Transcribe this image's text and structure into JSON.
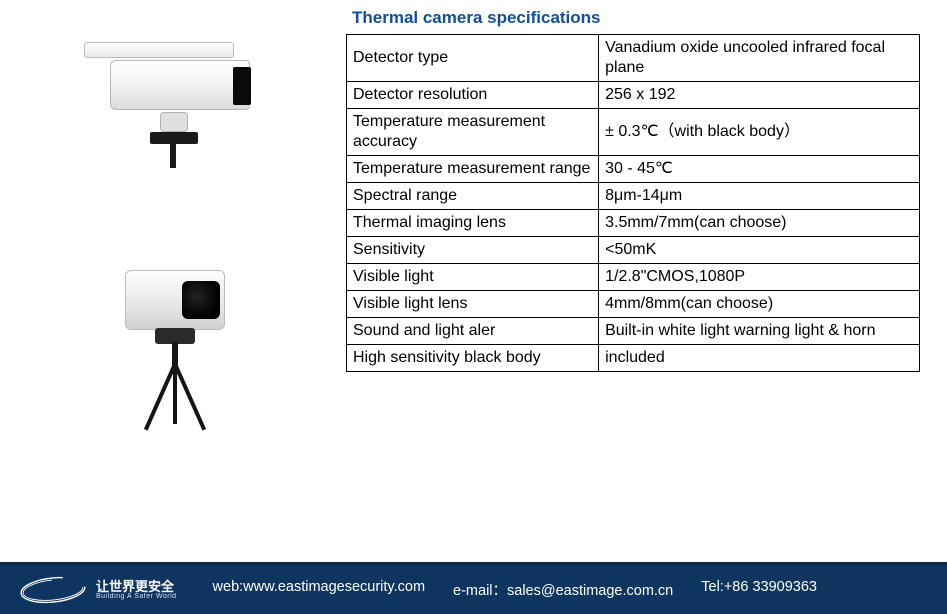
{
  "title": "Thermal camera specifications",
  "spec_rows": [
    {
      "label": "Detector type",
      "value": "Vanadium oxide uncooled infrared focal plane"
    },
    {
      "label": "Detector resolution",
      "value": "256 x 192"
    },
    {
      "label": "Temperature measurement accuracy",
      "value": "± 0.3℃（with black body）"
    },
    {
      "label": "Temperature measurement range",
      "value": "30 - 45℃"
    },
    {
      "label": "Spectral range",
      "value": "8μm-14μm"
    },
    {
      "label": "Thermal imaging lens",
      "value": "3.5mm/7mm(can choose)"
    },
    {
      "label": "Sensitivity",
      "value": "<50mK"
    },
    {
      "label": "Visible light",
      "value": "1/2.8\"CMOS,1080P"
    },
    {
      "label": "Visible light lens",
      "value": "4mm/8mm(can choose)"
    },
    {
      "label": "Sound and light aler",
      "value": "Built-in white light warning light & horn"
    },
    {
      "label": "High sensitivity black body",
      "value": "included"
    }
  ],
  "colors": {
    "title": "#0f4f9e",
    "border": "#000000",
    "footer_bg": "#0e355f",
    "footer_border": "#0a2a4a",
    "text_body": "#000000",
    "footer_text": "#ffffff"
  },
  "footer": {
    "slogan_cn": "让世界更安全",
    "slogan_en": "Building A Safer World",
    "web_label": "web:",
    "web_value": "www.eastimagesecurity.com",
    "email_label": "e-mail：",
    "email_value": "sales@eastimage.com.cn",
    "tel_label": "Tel:",
    "tel_value": "+86 33909363"
  },
  "images": {
    "camera1_alt": "thermal-bullet-camera",
    "camera2_alt": "blackbody-on-tripod"
  }
}
